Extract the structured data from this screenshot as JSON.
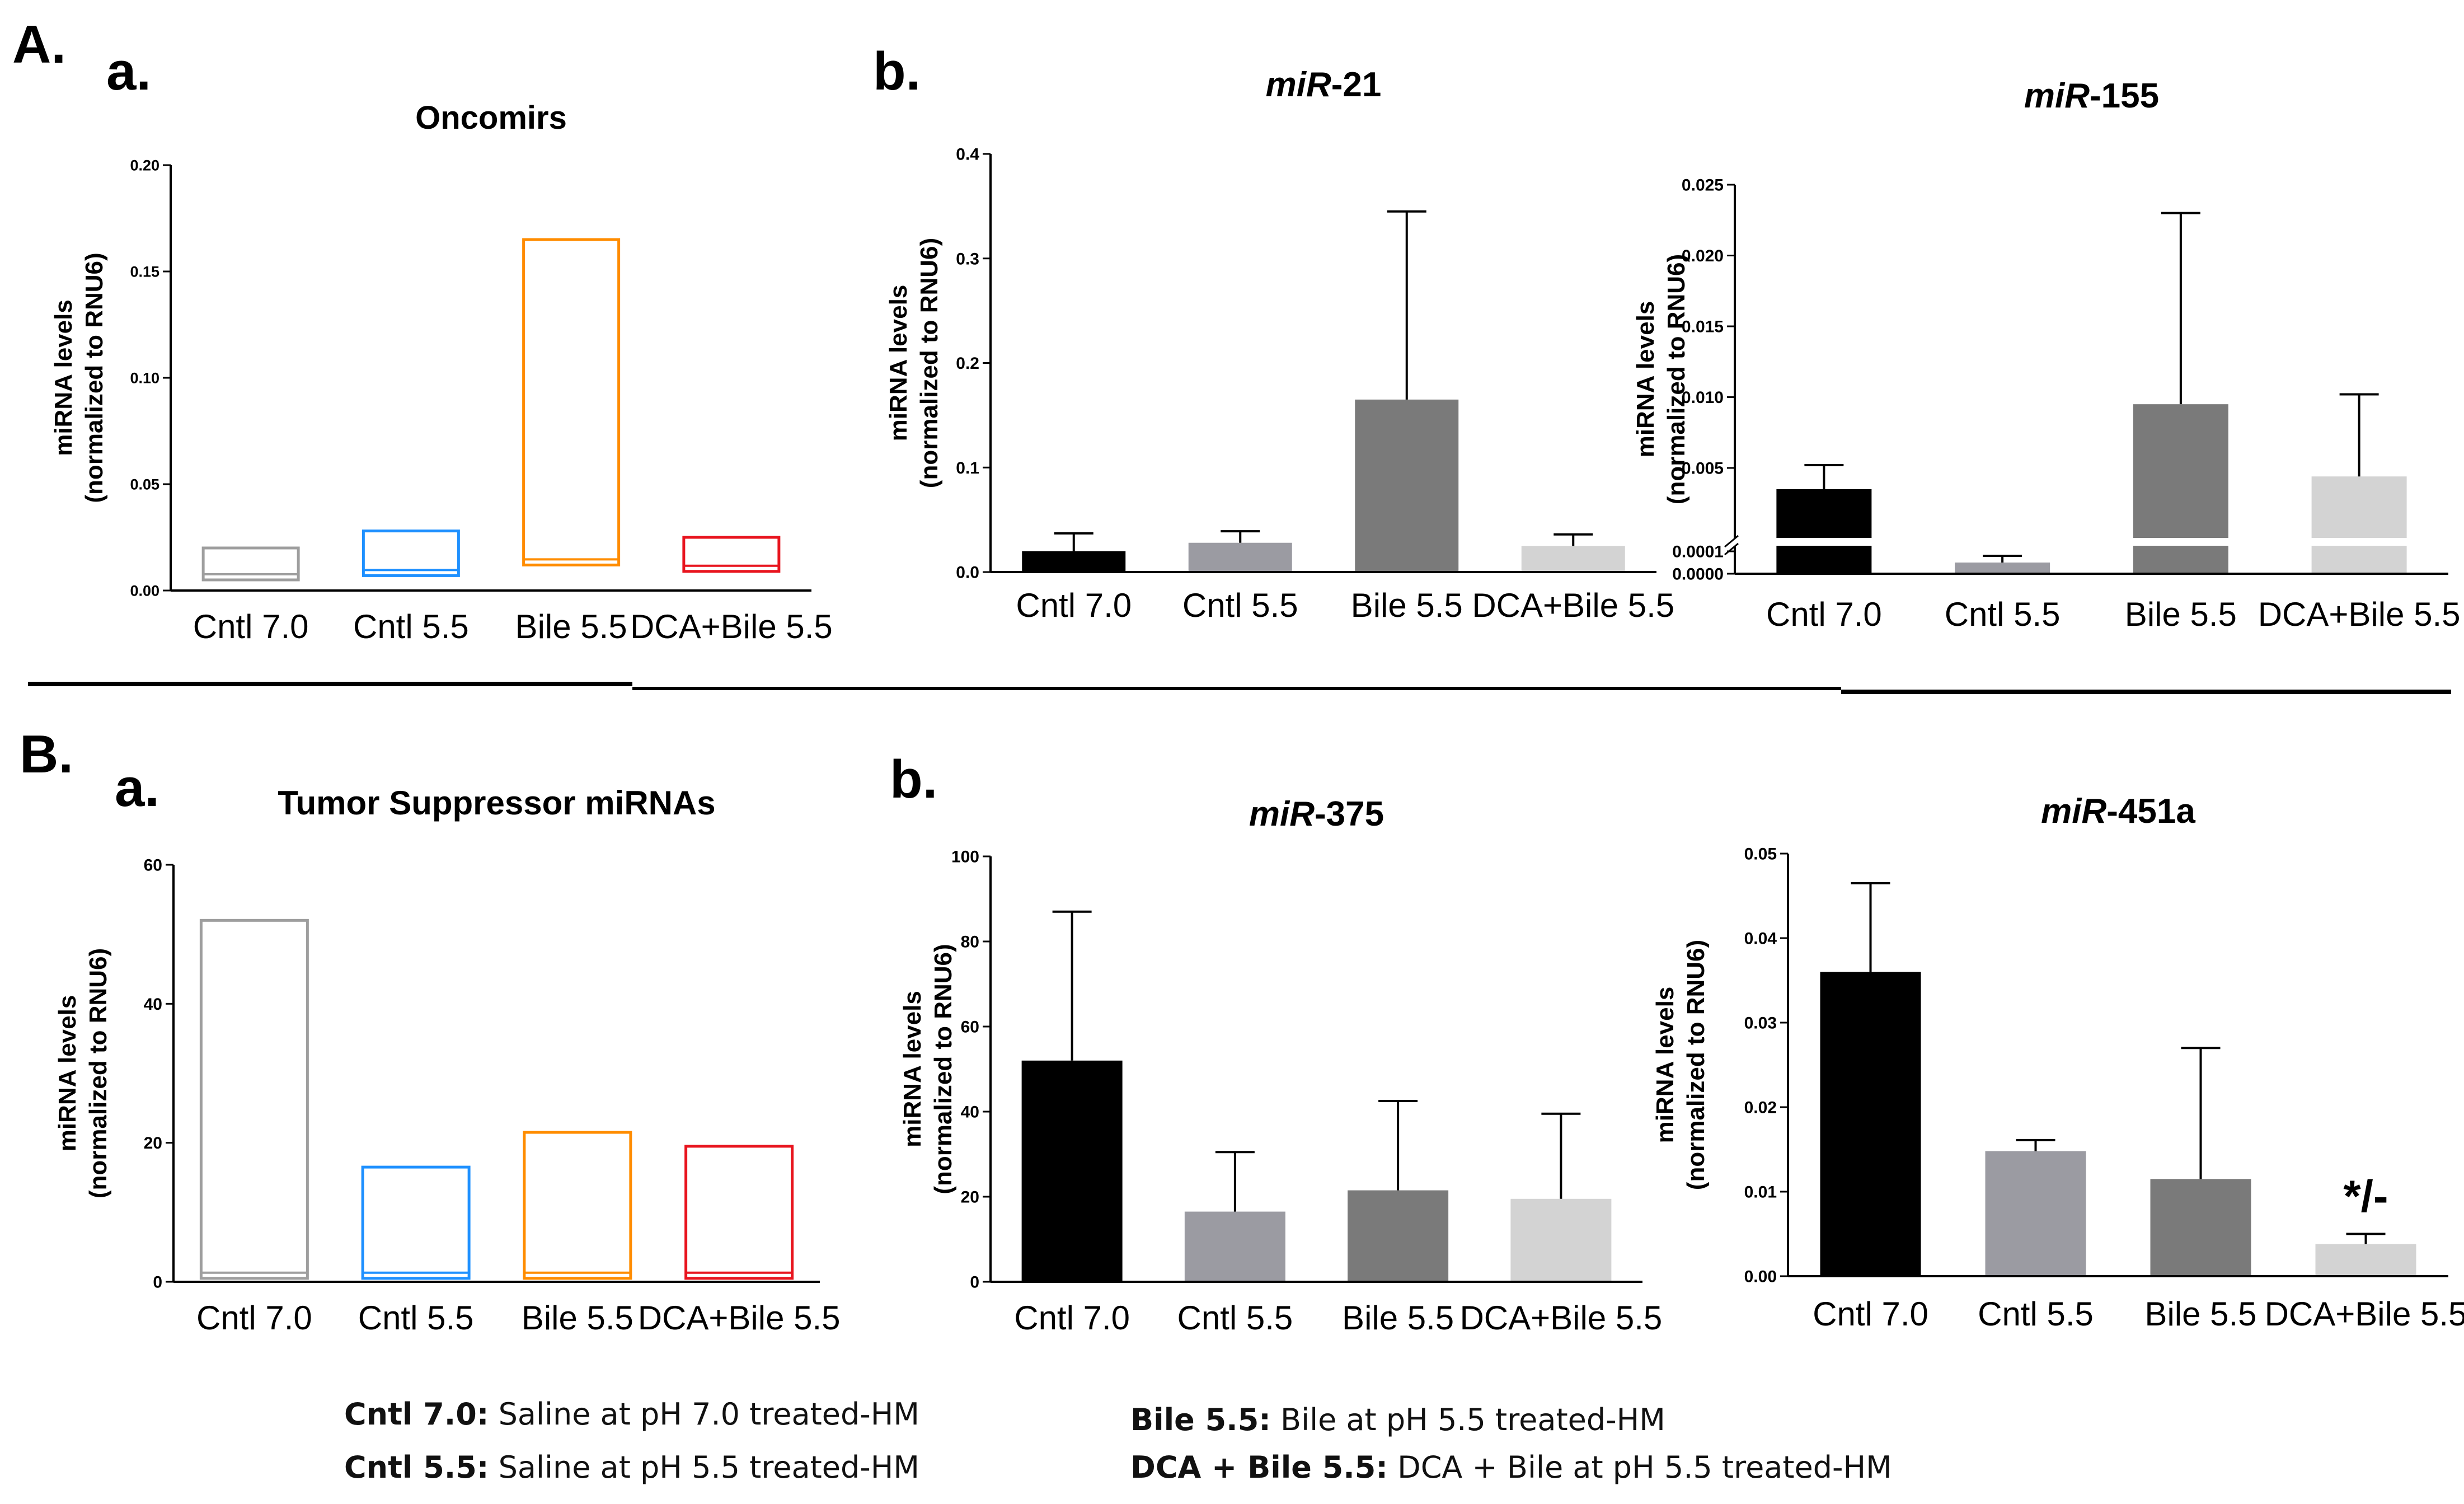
{
  "section_labels": {
    "A": "A.",
    "B": "B."
  },
  "panel_labels": {
    "Aa": "a.",
    "Ab": "b.",
    "Ba": "a.",
    "Bb": "b."
  },
  "categories": [
    "Cntl 7.0",
    "Cntl 5.5",
    "Bile 5.5",
    "DCA+Bile 5.5"
  ],
  "ylabel_line1": "miRNA levels",
  "ylabel_line2": "(normalized to RNU6)",
  "colors": {
    "outline": [
      "#9e9e9e",
      "#1e90ff",
      "#ff8c00",
      "#e8141e"
    ],
    "fill": [
      "#000000",
      "#9b9ba2",
      "#7a7a7a",
      "#d3d3d3"
    ]
  },
  "chart_data": [
    {
      "id": "oncomirs",
      "type": "bar",
      "style": "outline",
      "title": "Oncomirs",
      "categories": [
        "Cntl 7.0",
        "Cntl 5.5",
        "Bile 5.5",
        "DCA+Bile 5.5"
      ],
      "series": [
        {
          "name": "upper",
          "values": [
            0.02,
            0.028,
            0.165,
            0.025
          ]
        },
        {
          "name": "lower",
          "values": [
            0.005,
            0.007,
            0.012,
            0.009
          ]
        }
      ],
      "ylim": [
        0,
        0.2
      ],
      "yticks": [
        "0.00",
        "0.05",
        "0.10",
        "0.15",
        "0.20"
      ]
    },
    {
      "id": "mir21",
      "type": "bar",
      "style": "filled",
      "title_italic": "miR",
      "title_rest": "-21",
      "categories": [
        "Cntl 7.0",
        "Cntl 5.5",
        "Bile 5.5",
        "DCA+Bile 5.5"
      ],
      "values": [
        0.02,
        0.028,
        0.165,
        0.025
      ],
      "error": [
        0.017,
        0.011,
        0.18,
        0.011
      ],
      "ylim": [
        0,
        0.4
      ],
      "yticks": [
        "0.0",
        "0.1",
        "0.2",
        "0.3",
        "0.4"
      ]
    },
    {
      "id": "mir155",
      "type": "bar",
      "style": "filled",
      "broken_axis": true,
      "title_italic": "miR",
      "title_rest": "-155",
      "categories": [
        "Cntl 7.0",
        "Cntl 5.5",
        "Bile 5.5",
        "DCA+Bile 5.5"
      ],
      "values": [
        0.0035,
        5e-05,
        0.0095,
        0.0044
      ],
      "error": [
        0.0017,
        3e-05,
        0.0135,
        0.0058
      ],
      "ylim_lower": [
        0,
        0.0001
      ],
      "ylim_upper": [
        0.0001,
        0.025
      ],
      "yticks_lower": [
        "0.0000",
        "0.0001"
      ],
      "yticks_upper": [
        "0.005",
        "0.010",
        "0.015",
        "0.020",
        "0.025"
      ]
    },
    {
      "id": "tumor",
      "type": "bar",
      "style": "outline",
      "title": "Tumor Suppressor miRNAs",
      "categories": [
        "Cntl 7.0",
        "Cntl 5.5",
        "Bile 5.5",
        "DCA+Bile 5.5"
      ],
      "series": [
        {
          "name": "upper",
          "values": [
            52,
            16.5,
            21.5,
            19.5
          ]
        },
        {
          "name": "lower",
          "values": [
            0.5,
            0.5,
            0.5,
            0.5
          ]
        }
      ],
      "ylim": [
        0,
        60
      ],
      "yticks": [
        "0",
        "20",
        "40",
        "60"
      ]
    },
    {
      "id": "mir375",
      "type": "bar",
      "style": "filled",
      "title_italic": "miR",
      "title_rest": "-375",
      "categories": [
        "Cntl 7.0",
        "Cntl 5.5",
        "Bile 5.5",
        "DCA+Bile 5.5"
      ],
      "values": [
        52,
        16.5,
        21.5,
        19.5
      ],
      "error": [
        35,
        14,
        21,
        20
      ],
      "ylim": [
        0,
        100
      ],
      "yticks": [
        "0",
        "20",
        "40",
        "60",
        "80",
        "100"
      ]
    },
    {
      "id": "mir451a",
      "type": "bar",
      "style": "filled",
      "title_italic": "miR",
      "title_rest": "-451a",
      "categories": [
        "Cntl 7.0",
        "Cntl 5.5",
        "Bile 5.5",
        "DCA+Bile 5.5"
      ],
      "values": [
        0.036,
        0.0148,
        0.0115,
        0.0038
      ],
      "error": [
        0.0105,
        0.0013,
        0.0155,
        0.0012
      ],
      "ylim": [
        0,
        0.05
      ],
      "yticks": [
        "0.00",
        "0.01",
        "0.02",
        "0.03",
        "0.04",
        "0.05"
      ],
      "annotation": {
        "category": "DCA+Bile 5.5",
        "text": "*/-"
      }
    }
  ],
  "legend": [
    {
      "key": "Cntl 7.0:",
      "desc": " Saline at pH 7.0 treated-HM"
    },
    {
      "key": "Cntl 5.5:",
      "desc": " Saline at pH 5.5 treated-HM"
    },
    {
      "key": "Bile 5.5:",
      "desc": " Bile at pH 5.5 treated-HM"
    },
    {
      "key": "DCA + Bile 5.5:",
      "desc": " DCA + Bile at pH 5.5  treated-HM"
    }
  ]
}
